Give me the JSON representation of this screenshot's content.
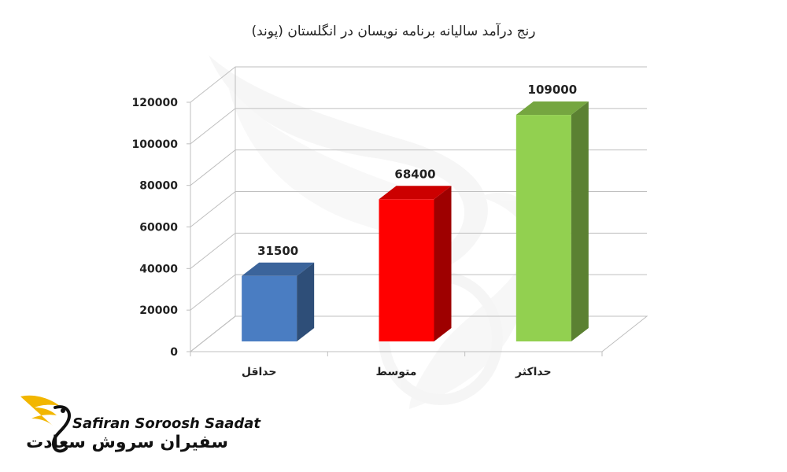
{
  "chart_data": {
    "type": "bar",
    "title": "رنج درآمد سالیانه برنامه نویسان در انگلستان (پوند)",
    "categories": [
      "حداقل",
      "متوسط",
      "حداکثر"
    ],
    "series": [
      {
        "values": [
          31500,
          68400,
          109000
        ]
      }
    ],
    "data_labels": [
      "31500",
      "68400",
      "109000"
    ],
    "colors": [
      "#4a7dc2",
      "#ff0000",
      "#92d050"
    ],
    "ylim": [
      0,
      120000
    ],
    "yticks": [
      0,
      20000,
      40000,
      60000,
      80000,
      100000,
      120000
    ],
    "grid": true,
    "style": "3d-columns"
  },
  "watermark": {
    "brand_en": "Safiran Soroosh Saadat",
    "brand_fa": "سفیران سروش سعادت"
  }
}
